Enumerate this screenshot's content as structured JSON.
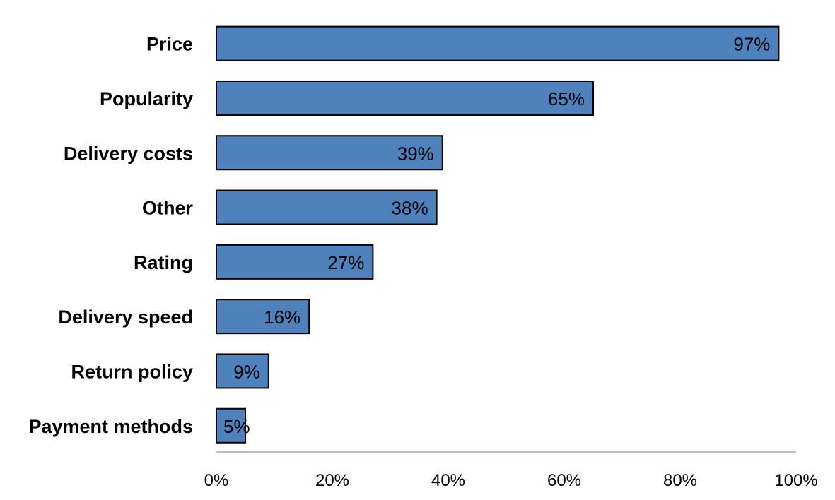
{
  "chart_data": {
    "type": "bar",
    "orientation": "horizontal",
    "categories": [
      "Price",
      "Popularity",
      "Delivery costs",
      "Other",
      "Rating",
      "Delivery speed",
      "Return policy",
      "Payment methods"
    ],
    "values": [
      97,
      65,
      39,
      38,
      27,
      16,
      9,
      5
    ],
    "data_labels": [
      "97%",
      "65%",
      "39%",
      "38%",
      "27%",
      "16%",
      "9%",
      "5%"
    ],
    "x_ticks": [
      "0%",
      "20%",
      "40%",
      "60%",
      "80%",
      "100%"
    ],
    "xlim": [
      0,
      100
    ],
    "grid": false,
    "legend": false,
    "bar_color": "#4F81BD",
    "bar_border_color": "#000000",
    "axis_color": "#A6A6A6"
  }
}
